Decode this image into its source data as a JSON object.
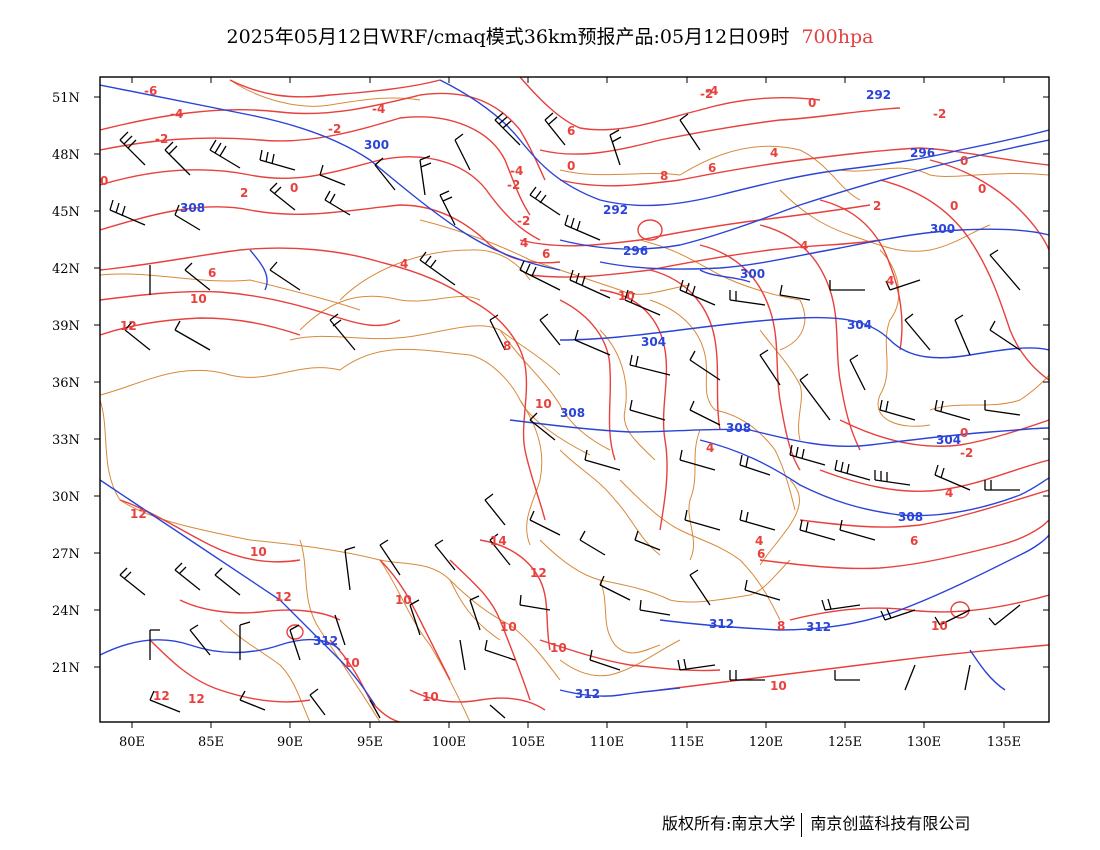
{
  "title": {
    "main": "2025年05月12日WRF/cmaq模式36km预报产品:05月12日09时",
    "level": "700hpa"
  },
  "map": {
    "lon_ticks": [
      "80E",
      "85E",
      "90E",
      "95E",
      "100E",
      "105E",
      "110E",
      "115E",
      "120E",
      "125E",
      "130E",
      "135E"
    ],
    "lat_ticks": [
      "51N",
      "48N",
      "45N",
      "42N",
      "39N",
      "36N",
      "33N",
      "30N",
      "27N",
      "24N",
      "21N"
    ],
    "temperature_labels": [
      "-6",
      "-4",
      "-2",
      "0",
      "2",
      "4",
      "6",
      "8",
      "10",
      "12",
      "14",
      "-4",
      "-2",
      "0",
      "4",
      "6",
      "8",
      "10",
      "12"
    ],
    "height_labels": [
      "292",
      "296",
      "300",
      "304",
      "308",
      "312"
    ],
    "colors": {
      "temperature": "#e8403c",
      "height": "#2a44d8",
      "boundary": "#d9893a",
      "wind": "#000000"
    }
  },
  "footer": {
    "copyright": "版权所有:南京大学",
    "company": "南京创蓝科技有限公司"
  }
}
